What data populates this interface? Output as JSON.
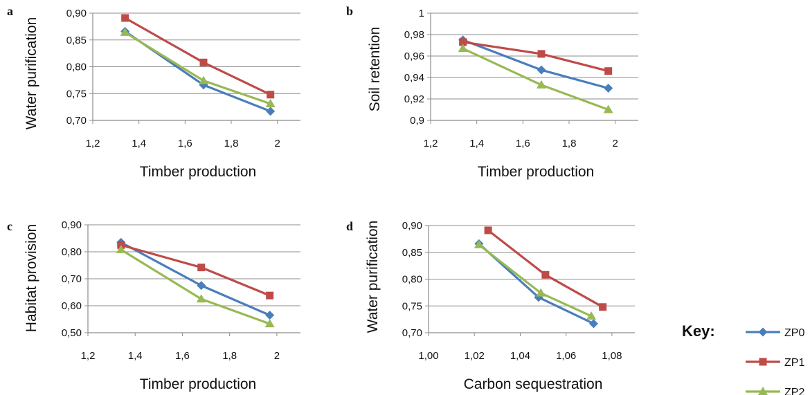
{
  "colors": {
    "ZP0": "#4a7ebb",
    "ZP1": "#be4b48",
    "ZP2": "#98b954"
  },
  "key": {
    "title": "Key:",
    "entries": [
      {
        "name": "ZP0",
        "marker": "diamond",
        "color": "#4a7ebb"
      },
      {
        "name": "ZP1",
        "marker": "square",
        "color": "#be4b48"
      },
      {
        "name": "ZP2",
        "marker": "triangle",
        "color": "#98b954"
      }
    ]
  },
  "chart_data": [
    {
      "panel": "a",
      "type": "line",
      "xlabel": "Timber production",
      "ylabel": "Water purification",
      "xlim": [
        1.2,
        2.1
      ],
      "ylim": [
        0.7,
        0.9
      ],
      "xticks": [
        "1,2",
        "1,4",
        "1,6",
        "1,8",
        "2"
      ],
      "xtick_values": [
        1.2,
        1.4,
        1.6,
        1.8,
        2.0
      ],
      "yticks": [
        "0,70",
        "0,75",
        "0,80",
        "0,85",
        "0,90"
      ],
      "ytick_values": [
        0.7,
        0.75,
        0.8,
        0.85,
        0.9
      ],
      "grid": "horizontal",
      "series": [
        {
          "name": "ZP0",
          "color": "#4a7ebb",
          "marker": "diamond",
          "x": [
            1.34,
            1.68,
            1.97
          ],
          "y": [
            0.866,
            0.766,
            0.717
          ]
        },
        {
          "name": "ZP1",
          "color": "#be4b48",
          "marker": "square",
          "x": [
            1.34,
            1.68,
            1.97
          ],
          "y": [
            0.891,
            0.808,
            0.748
          ]
        },
        {
          "name": "ZP2",
          "color": "#98b954",
          "marker": "triangle",
          "x": [
            1.34,
            1.68,
            1.97
          ],
          "y": [
            0.864,
            0.774,
            0.731
          ]
        }
      ]
    },
    {
      "panel": "b",
      "type": "line",
      "xlabel": "Timber production",
      "ylabel": "Soil retention",
      "xlim": [
        1.2,
        2.1
      ],
      "ylim": [
        0.9,
        1.0
      ],
      "xticks": [
        "1,2",
        "1,4",
        "1,6",
        "1,8",
        "2"
      ],
      "xtick_values": [
        1.2,
        1.4,
        1.6,
        1.8,
        2.0
      ],
      "yticks": [
        "0,9",
        "0,92",
        "0,94",
        "0,96",
        "0,98",
        "1"
      ],
      "ytick_values": [
        0.9,
        0.92,
        0.94,
        0.96,
        0.98,
        1.0
      ],
      "grid": "horizontal",
      "series": [
        {
          "name": "ZP0",
          "color": "#4a7ebb",
          "marker": "diamond",
          "x": [
            1.34,
            1.68,
            1.97
          ],
          "y": [
            0.975,
            0.947,
            0.93
          ]
        },
        {
          "name": "ZP1",
          "color": "#be4b48",
          "marker": "square",
          "x": [
            1.34,
            1.68,
            1.97
          ],
          "y": [
            0.973,
            0.962,
            0.946
          ]
        },
        {
          "name": "ZP2",
          "color": "#98b954",
          "marker": "triangle",
          "x": [
            1.34,
            1.68,
            1.97
          ],
          "y": [
            0.967,
            0.933,
            0.91
          ]
        }
      ]
    },
    {
      "panel": "c",
      "type": "line",
      "xlabel": "Timber production",
      "ylabel": "Habitat provision",
      "xlim": [
        1.2,
        2.1
      ],
      "ylim": [
        0.5,
        0.9
      ],
      "xticks": [
        "1,2",
        "1,4",
        "1,6",
        "1,8",
        "2"
      ],
      "xtick_values": [
        1.2,
        1.4,
        1.6,
        1.8,
        2.0
      ],
      "yticks": [
        "0,50",
        "0,60",
        "0,70",
        "0,80",
        "0,90"
      ],
      "ytick_values": [
        0.5,
        0.6,
        0.7,
        0.8,
        0.9
      ],
      "grid": "horizontal",
      "series": [
        {
          "name": "ZP0",
          "color": "#4a7ebb",
          "marker": "diamond",
          "x": [
            1.34,
            1.68,
            1.97
          ],
          "y": [
            0.835,
            0.675,
            0.565
          ]
        },
        {
          "name": "ZP1",
          "color": "#be4b48",
          "marker": "square",
          "x": [
            1.34,
            1.68,
            1.97
          ],
          "y": [
            0.825,
            0.742,
            0.638
          ]
        },
        {
          "name": "ZP2",
          "color": "#98b954",
          "marker": "triangle",
          "x": [
            1.34,
            1.68,
            1.97
          ],
          "y": [
            0.808,
            0.625,
            0.533
          ]
        }
      ]
    },
    {
      "panel": "d",
      "type": "line",
      "xlabel": "Carbon sequestration",
      "ylabel": "Water purification",
      "xlim": [
        1.0,
        1.09
      ],
      "ylim": [
        0.7,
        0.9
      ],
      "xticks": [
        "1,00",
        "1,02",
        "1,04",
        "1,06",
        "1,08"
      ],
      "xtick_values": [
        1.0,
        1.02,
        1.04,
        1.06,
        1.08
      ],
      "yticks": [
        "0,70",
        "0,75",
        "0,80",
        "0,85",
        "0,90"
      ],
      "ytick_values": [
        0.7,
        0.75,
        0.8,
        0.85,
        0.9
      ],
      "grid": "horizontal",
      "series": [
        {
          "name": "ZP0",
          "color": "#4a7ebb",
          "marker": "diamond",
          "x": [
            1.022,
            1.048,
            1.072
          ],
          "y": [
            0.866,
            0.766,
            0.717
          ]
        },
        {
          "name": "ZP1",
          "color": "#be4b48",
          "marker": "square",
          "x": [
            1.026,
            1.051,
            1.076
          ],
          "y": [
            0.891,
            0.808,
            0.748
          ]
        },
        {
          "name": "ZP2",
          "color": "#98b954",
          "marker": "triangle",
          "x": [
            1.022,
            1.049,
            1.071
          ],
          "y": [
            0.864,
            0.774,
            0.731
          ]
        }
      ]
    }
  ]
}
